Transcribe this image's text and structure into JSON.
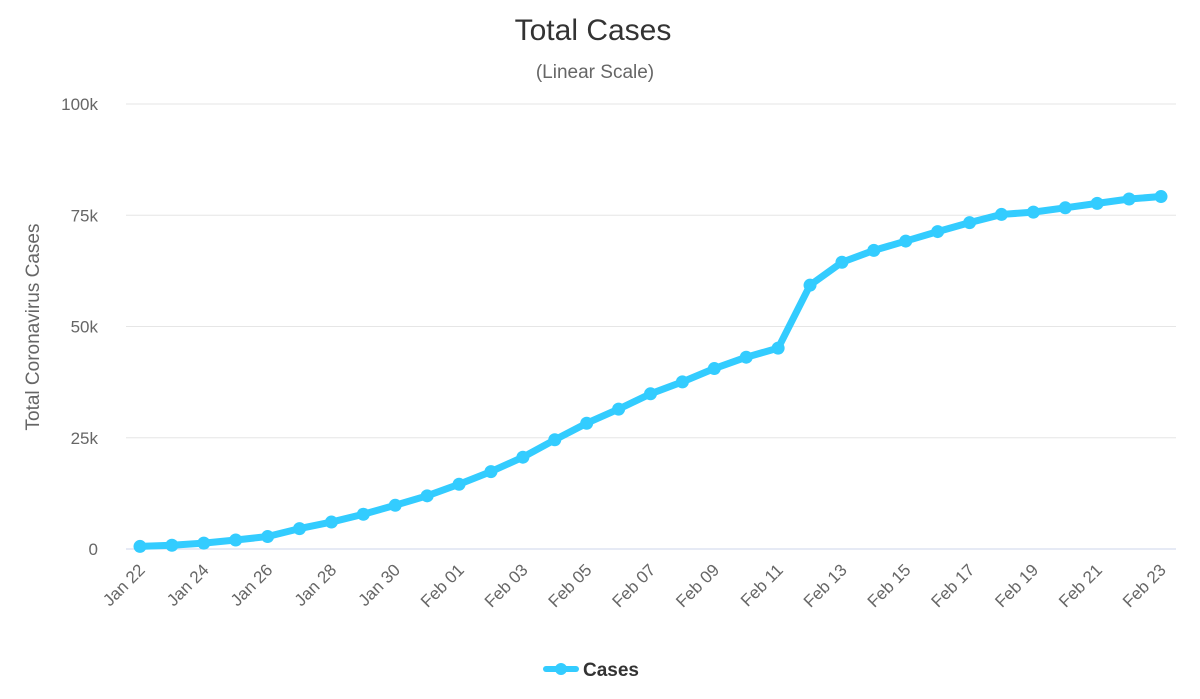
{
  "chart_data": {
    "type": "line",
    "title": "Total Cases",
    "subtitle": "(Linear Scale)",
    "xlabel": "",
    "ylabel": "Total Coronavirus Cases",
    "ylim": [
      0,
      100000
    ],
    "y_ticks": [
      0,
      25000,
      50000,
      75000,
      100000
    ],
    "y_tick_labels": [
      "0",
      "25k",
      "50k",
      "75k",
      "100k"
    ],
    "grid": true,
    "legend_position": "bottom-center",
    "x": [
      "Jan 22",
      "Jan 23",
      "Jan 24",
      "Jan 25",
      "Jan 26",
      "Jan 27",
      "Jan 28",
      "Jan 29",
      "Jan 30",
      "Jan 31",
      "Feb 01",
      "Feb 02",
      "Feb 03",
      "Feb 04",
      "Feb 05",
      "Feb 06",
      "Feb 07",
      "Feb 08",
      "Feb 09",
      "Feb 10",
      "Feb 11",
      "Feb 12",
      "Feb 13",
      "Feb 14",
      "Feb 15",
      "Feb 16",
      "Feb 17",
      "Feb 18",
      "Feb 19",
      "Feb 20",
      "Feb 21",
      "Feb 22",
      "Feb 23"
    ],
    "x_tick_labels": [
      "Jan 22",
      "Jan 24",
      "Jan 26",
      "Jan 28",
      "Jan 30",
      "Feb 01",
      "Feb 03",
      "Feb 05",
      "Feb 07",
      "Feb 09",
      "Feb 11",
      "Feb 13",
      "Feb 15",
      "Feb 17",
      "Feb 19",
      "Feb 21",
      "Feb 23"
    ],
    "series": [
      {
        "name": "Cases",
        "color": "#33ccff",
        "values": [
          580,
          845,
          1317,
          2015,
          2800,
          4581,
          6058,
          7813,
          9823,
          11950,
          14553,
          17391,
          20630,
          24545,
          28266,
          31439,
          34876,
          37552,
          40553,
          43099,
          45134,
          59287,
          64438,
          67100,
          69197,
          71329,
          73332,
          75184,
          75700,
          76677,
          77673,
          78651,
          79205
        ]
      }
    ]
  }
}
